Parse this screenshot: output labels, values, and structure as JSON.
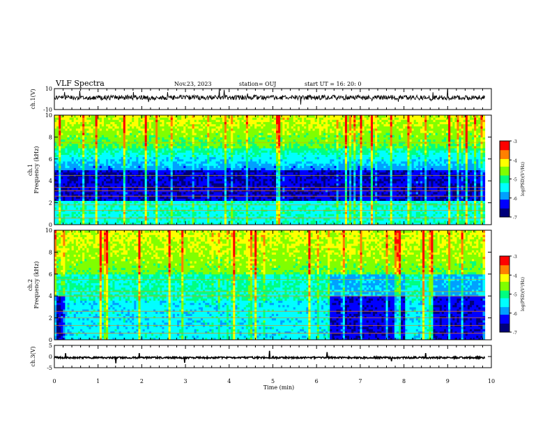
{
  "header": {
    "title": "VLF Spectra",
    "date": "Nov.23, 2023",
    "station": "station= OUJ",
    "start": "start  UT =   16: 20: 0"
  },
  "colors": {
    "colormap": [
      "#00007a",
      "#0000ff",
      "#00a0ff",
      "#00ffff",
      "#00ff80",
      "#80ff00",
      "#ffff00",
      "#ff8000",
      "#ff0000",
      "#ffffff"
    ]
  },
  "chart_data": [
    {
      "type": "line",
      "panel": "ch1-waveform",
      "ylabel": "ch.1(V)",
      "ylim": [
        -10,
        10
      ],
      "yticks": [
        "10",
        "-10"
      ],
      "x": [
        0,
        10
      ],
      "baseline_level": 1.5
    },
    {
      "type": "heatmap",
      "panel": "ch1-spectrogram",
      "ylabel": "ch.1\nFrequency (kHz)",
      "ylim": [
        0,
        10
      ],
      "yticks": [
        "0",
        "2",
        "4",
        "6",
        "8",
        "10"
      ],
      "xlim": [
        0,
        10
      ],
      "colorbar": {
        "label": "log(PSD)(V²/Hz)",
        "min": -7,
        "max": -3,
        "ticks": [
          "-3",
          "-4",
          "-5",
          "-6",
          "-7"
        ]
      }
    },
    {
      "type": "heatmap",
      "panel": "ch2-spectrogram",
      "ylabel": "ch.2\nFrequency (kHz)",
      "ylim": [
        0,
        10
      ],
      "yticks": [
        "0",
        "2",
        "4",
        "6",
        "8",
        "10"
      ],
      "xlim": [
        0,
        10
      ],
      "colorbar": {
        "label": "log(PSD)(V²/Hz)",
        "min": -7,
        "max": -3,
        "ticks": [
          "-3",
          "-4",
          "-5",
          "-6",
          "-7"
        ]
      }
    },
    {
      "type": "line",
      "panel": "ch3-waveform",
      "ylabel": "ch.3(V)",
      "ylim": [
        -5,
        5
      ],
      "yticks": [
        "5",
        "0",
        "-5"
      ],
      "x": [
        0,
        10
      ],
      "baseline_level": -0.5
    }
  ],
  "xaxis": {
    "label": "Time (min)",
    "ticks": [
      "0",
      "1",
      "2",
      "3",
      "4",
      "5",
      "6",
      "7",
      "8",
      "9",
      "10"
    ],
    "range": [
      0,
      10
    ]
  }
}
